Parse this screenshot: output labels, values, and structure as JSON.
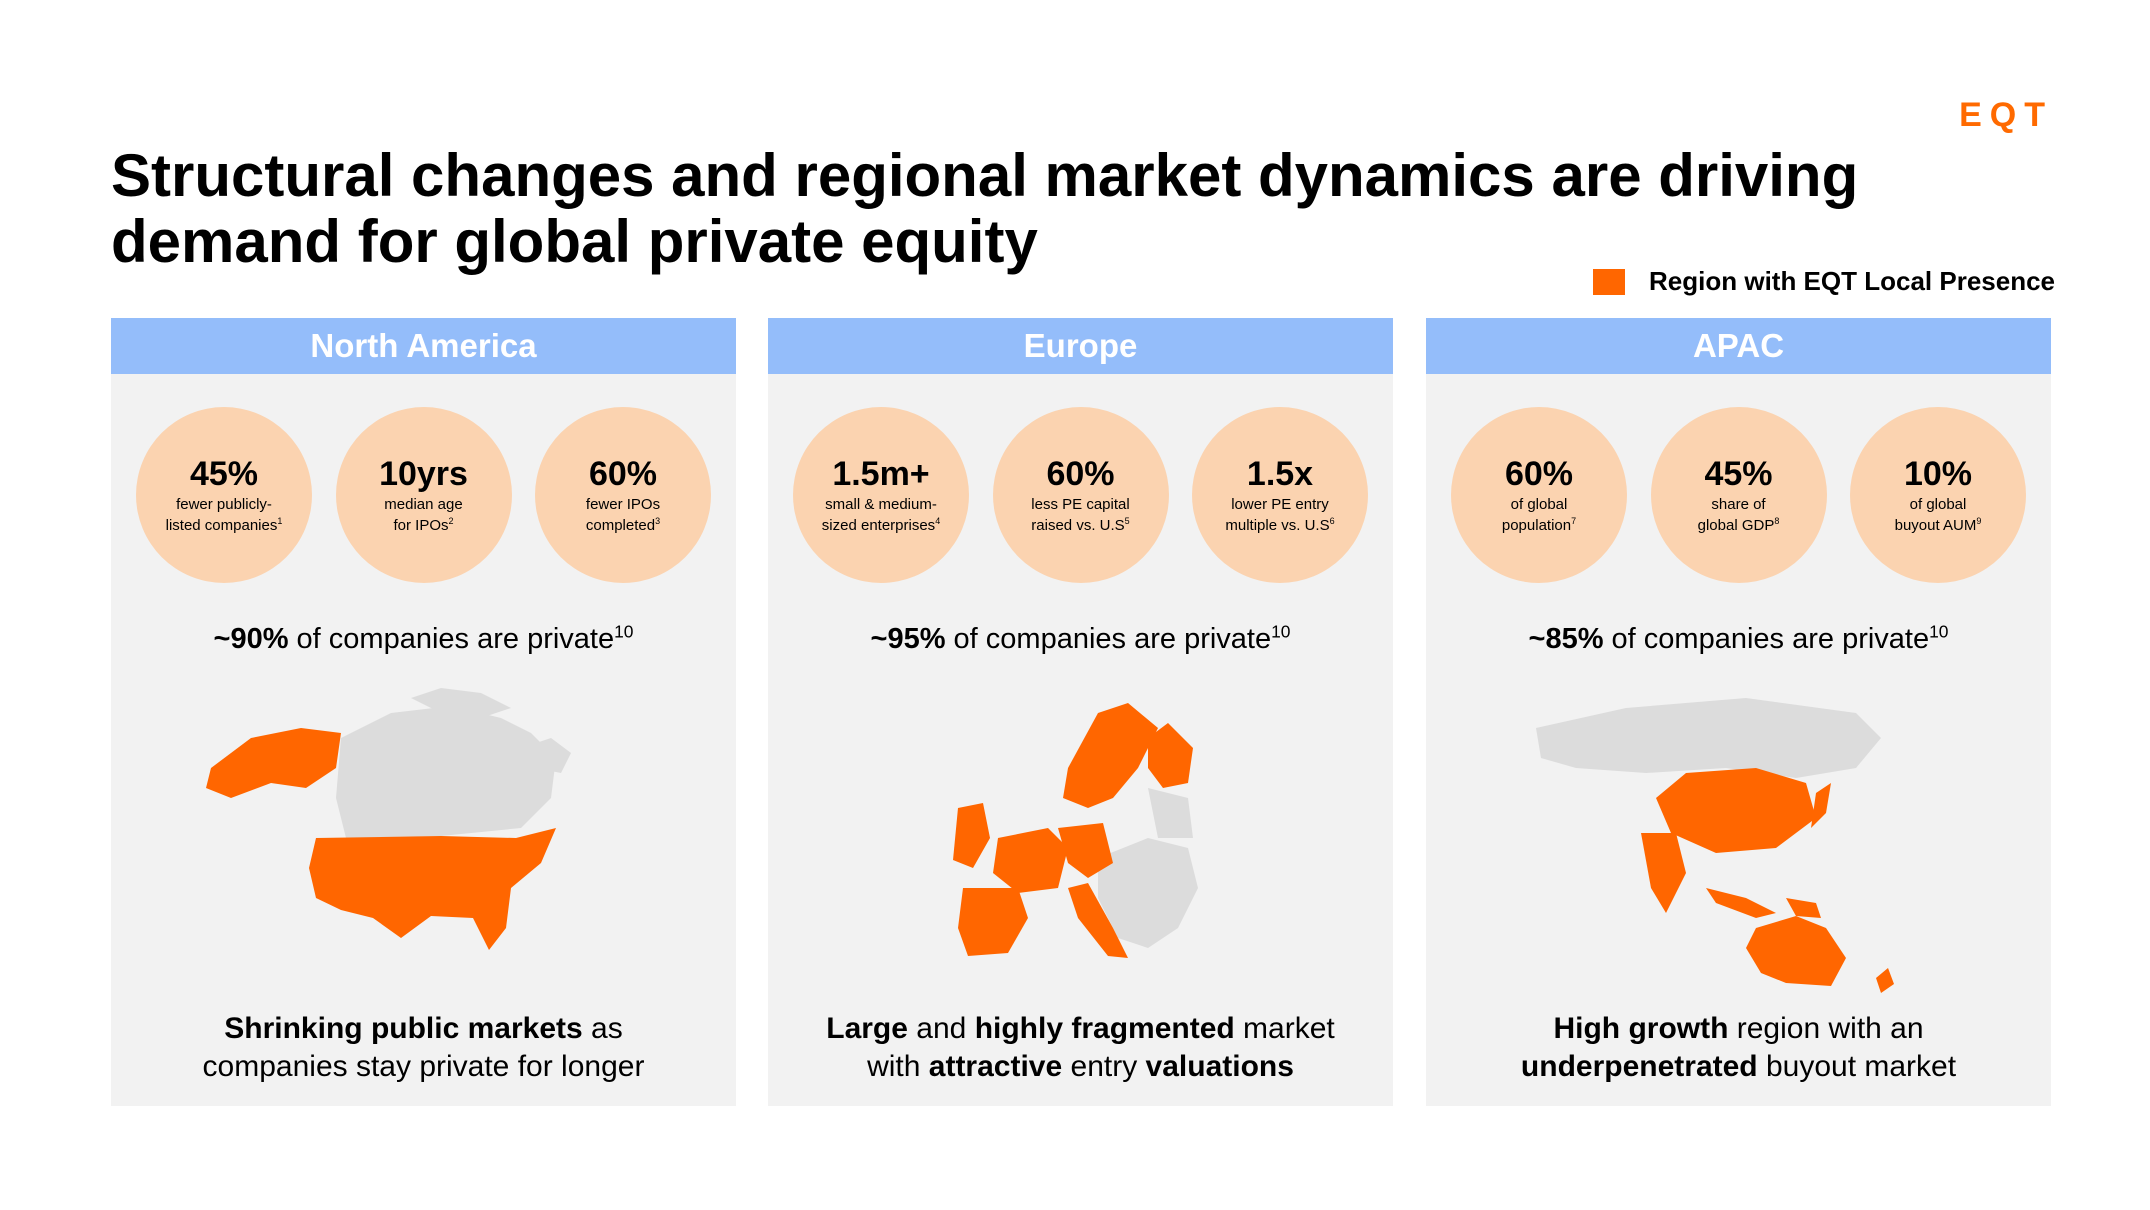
{
  "logo": "EQT",
  "title": "Structural changes and regional market dynamics are driving demand for global private equity",
  "legend": {
    "label": "Region with EQT Local Presence",
    "color": "#ff6600"
  },
  "colors": {
    "accent": "#ff6600",
    "header_bg": "#94bdfa",
    "circle_bg": "#fbd3b0",
    "panel_bg": "#f2f2f2",
    "map_gray": "#dcdcdc"
  },
  "regions": [
    {
      "name": "North America",
      "stats": [
        {
          "value": "45%",
          "line1": "fewer publicly-",
          "line2": "listed companies",
          "sup": "1"
        },
        {
          "value": "10yrs",
          "line1": "median age",
          "line2": "for IPOs",
          "sup": "2"
        },
        {
          "value": "60%",
          "line1": "fewer IPOs",
          "line2": "completed",
          "sup": "3"
        }
      ],
      "private_pct": "~90%",
      "private_text": " of companies are private",
      "private_sup": "10",
      "bottom": {
        "b1": "Shrinking public markets",
        "t1": " as",
        "t2": "companies stay private for longer"
      }
    },
    {
      "name": "Europe",
      "stats": [
        {
          "value": "1.5m+",
          "line1": "small & medium-",
          "line2": "sized enterprises",
          "sup": "4"
        },
        {
          "value": "60%",
          "line1": "less PE capital",
          "line2": "raised vs. U.S",
          "sup": "5"
        },
        {
          "value": "1.5x",
          "line1": "lower PE entry",
          "line2": "multiple vs. U.S",
          "sup": "6"
        }
      ],
      "private_pct": "~95%",
      "private_text": " of companies are private",
      "private_sup": "10",
      "bottom": {
        "b1": "Large",
        "t1": " and ",
        "b2": "highly fragmented",
        "t2": " market",
        "t3": "with ",
        "b3": "attractive",
        "t4": " entry ",
        "b4": "valuations"
      }
    },
    {
      "name": "APAC",
      "stats": [
        {
          "value": "60%",
          "line1": "of global",
          "line2": "population",
          "sup": "7"
        },
        {
          "value": "45%",
          "line1": "share of",
          "line2": "global GDP",
          "sup": "8"
        },
        {
          "value": "10%",
          "line1": "of global",
          "line2": "buyout AUM",
          "sup": "9"
        }
      ],
      "private_pct": "~85%",
      "private_text": " of companies are private",
      "private_sup": "10",
      "bottom": {
        "b1": "High growth",
        "t1": " region with an",
        "b2": "underpenetrated",
        "t2": " buyout market"
      }
    }
  ]
}
